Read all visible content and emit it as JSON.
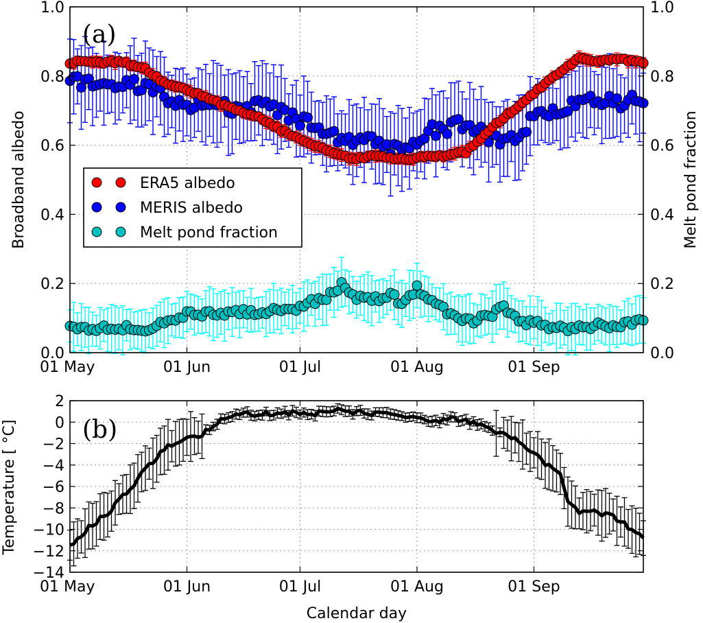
{
  "chart_data": [
    {
      "type": "scatter",
      "panel_label": "(a)",
      "ylabel_left": "Broadband albedo",
      "ylabel_right": "Melt pond fraction",
      "ylim": [
        0.0,
        1.0
      ],
      "y_ticks": [
        "0.0",
        "0.2",
        "0.4",
        "0.6",
        "0.8",
        "1.0"
      ],
      "x_ticks": [
        "01 May",
        "01 Jun",
        "01 Jul",
        "01 Aug",
        "01 Sep"
      ],
      "x_tick_days": [
        0,
        31,
        61,
        92,
        123
      ],
      "x_range_days": [
        0,
        152
      ],
      "grid": true,
      "legend_position": "center-left",
      "legend": [
        "ERA5 albedo",
        "MERIS albedo",
        "Melt pond fraction"
      ],
      "colors": {
        "era5": "#ff0000",
        "meris": "#0000ff",
        "pond": "#00bfbf",
        "pond_err": "#00ffff"
      },
      "series": [
        {
          "name": "ERA5 albedo",
          "anchor_days": [
            0,
            14,
            20,
            25,
            31,
            40,
            50,
            55,
            60,
            65,
            70,
            75,
            80,
            85,
            90,
            95,
            100,
            105,
            110,
            115,
            120,
            125,
            130,
            135,
            140,
            145,
            152
          ],
          "anchor_values": [
            0.84,
            0.84,
            0.82,
            0.78,
            0.76,
            0.72,
            0.68,
            0.65,
            0.62,
            0.6,
            0.58,
            0.56,
            0.57,
            0.56,
            0.56,
            0.57,
            0.57,
            0.58,
            0.63,
            0.68,
            0.72,
            0.77,
            0.81,
            0.85,
            0.84,
            0.85,
            0.84
          ],
          "error": 0.015
        },
        {
          "name": "MERIS albedo",
          "anchor_days": [
            0,
            10,
            20,
            25,
            31,
            40,
            50,
            55,
            60,
            65,
            70,
            75,
            80,
            85,
            90,
            95,
            100,
            105,
            110,
            115,
            120,
            125,
            130,
            135,
            140,
            145,
            152
          ],
          "anchor_values": [
            0.79,
            0.78,
            0.77,
            0.74,
            0.72,
            0.71,
            0.71,
            0.7,
            0.68,
            0.66,
            0.63,
            0.61,
            0.62,
            0.58,
            0.6,
            0.64,
            0.65,
            0.66,
            0.63,
            0.6,
            0.65,
            0.69,
            0.71,
            0.72,
            0.73,
            0.72,
            0.73
          ],
          "error": 0.1
        },
        {
          "name": "Melt pond fraction",
          "anchor_days": [
            0,
            10,
            20,
            25,
            31,
            40,
            50,
            55,
            60,
            65,
            70,
            72,
            75,
            80,
            85,
            88,
            92,
            95,
            100,
            105,
            110,
            115,
            120,
            125,
            130,
            135,
            140,
            145,
            152
          ],
          "anchor_values": [
            0.07,
            0.07,
            0.07,
            0.09,
            0.11,
            0.11,
            0.12,
            0.12,
            0.13,
            0.15,
            0.17,
            0.2,
            0.16,
            0.15,
            0.17,
            0.14,
            0.19,
            0.15,
            0.12,
            0.09,
            0.1,
            0.13,
            0.09,
            0.08,
            0.07,
            0.07,
            0.08,
            0.07,
            0.1
          ],
          "error": 0.06
        }
      ]
    },
    {
      "type": "line",
      "panel_label": "(b)",
      "xlabel": "Calendar day",
      "ylabel": "Temperature [$^\\circ$C]",
      "ylim": [
        -14,
        2
      ],
      "y_ticks": [
        "2",
        "0",
        "−2",
        "−4",
        "−6",
        "−8",
        "−10",
        "−12",
        "−14"
      ],
      "x_ticks": [
        "01 May",
        "01 Jun",
        "01 Jul",
        "01 Aug",
        "01 Sep"
      ],
      "x_tick_days": [
        0,
        31,
        61,
        92,
        123
      ],
      "x_range_days": [
        0,
        152
      ],
      "grid": true,
      "color": "#000000",
      "series": [
        {
          "name": "Temperature",
          "anchor_days": [
            0,
            5,
            10,
            15,
            20,
            25,
            31,
            35,
            40,
            45,
            50,
            55,
            60,
            65,
            70,
            72,
            75,
            80,
            85,
            92,
            95,
            100,
            105,
            110,
            115,
            120,
            123,
            125,
            130,
            132,
            135,
            140,
            145,
            150,
            152
          ],
          "anchor_values": [
            -11.5,
            -9.8,
            -8.5,
            -6.5,
            -4.5,
            -2.5,
            -1.5,
            -1.2,
            0.3,
            0.7,
            0.8,
            0.8,
            0.9,
            0.8,
            1.0,
            1.1,
            0.9,
            0.8,
            0.7,
            0.4,
            -0.1,
            0.3,
            0.2,
            -0.5,
            -1.0,
            -2.0,
            -3.0,
            -3.5,
            -5.0,
            -7.5,
            -8.3,
            -8.4,
            -9.0,
            -10.3,
            -11.0
          ],
          "error": 1.8
        }
      ]
    }
  ],
  "labels": {
    "ylabel_b_display": "Temperature [ °C]"
  }
}
